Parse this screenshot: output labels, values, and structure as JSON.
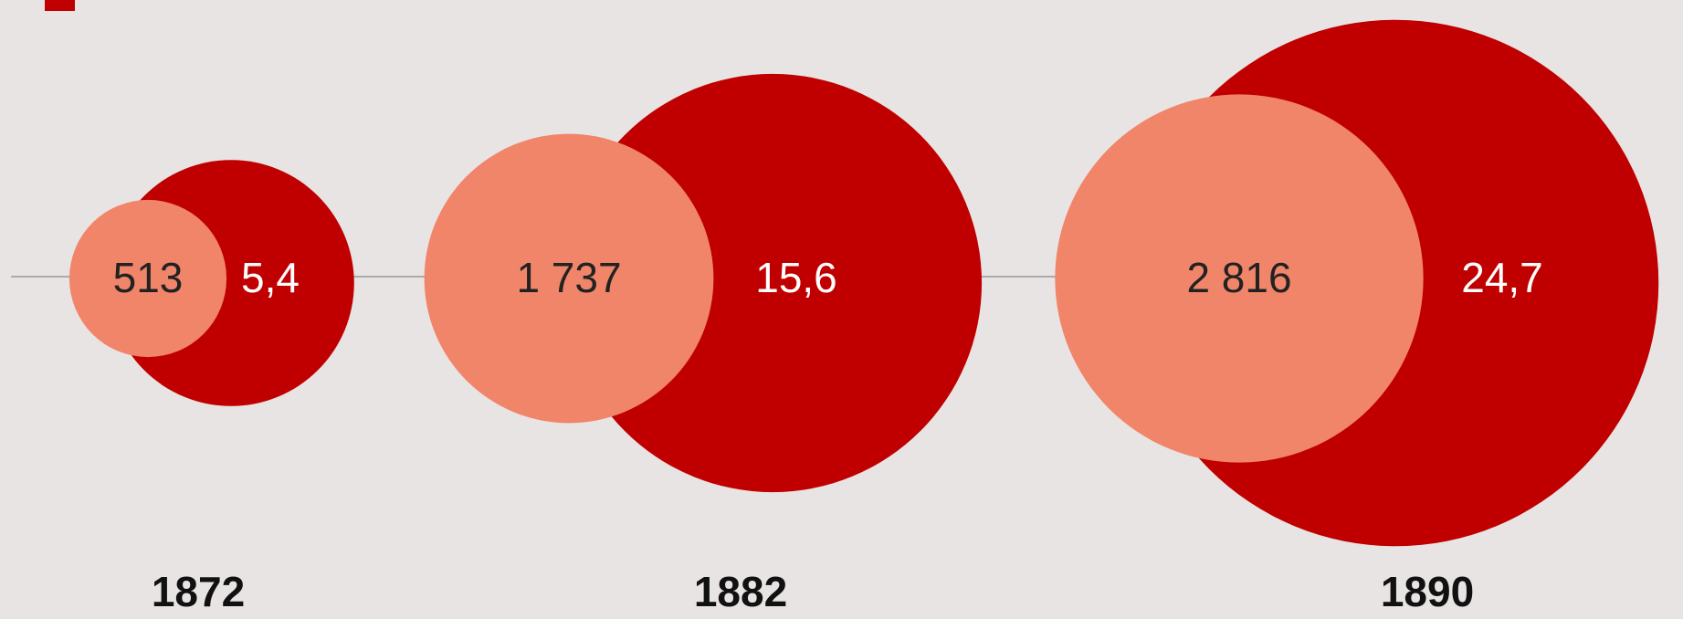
{
  "chart_data": {
    "type": "bubble",
    "categories": [
      "1872",
      "1882",
      "1890"
    ],
    "series": [
      {
        "color": "#f0856a",
        "values": [
          513,
          1737,
          2816
        ],
        "value_labels": [
          "513",
          "1 737",
          "2 816"
        ],
        "label_color": "#222"
      },
      {
        "color": "#c00000",
        "values": [
          5.4,
          15.6,
          24.7
        ],
        "value_labels": [
          "5,4",
          "15,6",
          "24,7"
        ],
        "label_color": "#fff"
      }
    ]
  }
}
